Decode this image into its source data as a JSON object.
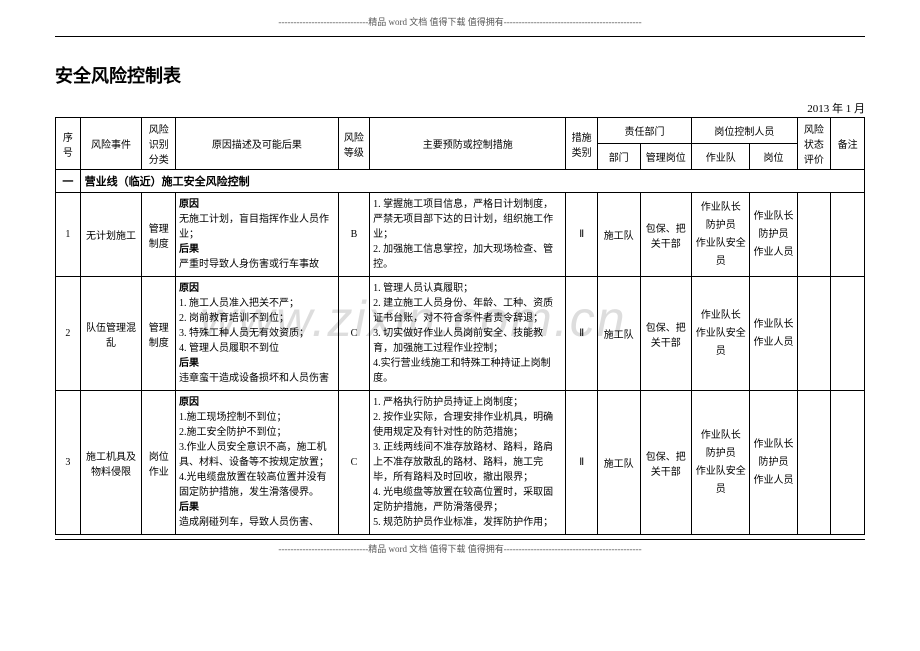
{
  "header": "------------------------------精品 word 文档 值得下载 值得拥有----------------------------------------------",
  "footer": "------------------------------精品 word 文档 值得下载 值得拥有----------------------------------------------",
  "title": "安全风险控制表",
  "date": "2013 年 1 月",
  "watermark": "www.zixin.com.cn",
  "columns": {
    "seq": "序号",
    "event": "风险事件",
    "classify": "风险识别分类",
    "cause": "原因描述及可能后果",
    "level": "风险等级",
    "measures": "主要预防或控制措施",
    "mtype": "措施类别",
    "dept_group": "责任部门",
    "dept": "部门",
    "mgmt": "管理岗位",
    "post_group": "岗位控制人员",
    "team": "作业队",
    "post": "岗位",
    "status": "风险状态评价",
    "remark": "备注"
  },
  "section": {
    "no": "一",
    "title": "营业线（临近）施工安全风险控制"
  },
  "rows": [
    {
      "seq": "1",
      "event": "无计划施工",
      "classify": "管理制度",
      "cause_label": "原因",
      "cause_text": "无施工计划，盲目指挥作业人员作业；",
      "result_label": "后果",
      "result_text": "严重时导致人身伤害或行车事故",
      "level": "B",
      "measures": "1. 掌握施工项目信息，严格日计划制度，严禁无项目部下达的日计划，组织施工作业；\n2. 加强施工信息掌控，加大现场检查、管控。",
      "mtype": "Ⅱ",
      "dept": "施工队",
      "mgmt": "包保、把关干部",
      "team": "作业队长\n防护员\n作业队安全员",
      "post": "作业队长\n防护员\n作业人员"
    },
    {
      "seq": "2",
      "event": "队伍管理混乱",
      "classify": "管理制度",
      "cause_label": "原因",
      "cause_text": "1. 施工人员准入把关不严；\n2. 岗前教育培训不到位；\n3. 特殊工种人员无有效资质；\n4. 管理人员履职不到位",
      "result_label": "后果",
      "result_text": "违章蛮干造成设备损坏和人员伤害",
      "level": "C",
      "measures": "1. 管理人员认真履职；\n2. 建立施工人员身份、年龄、工种、资质证书台账，对不符合条件者责令辞退；\n3. 切实做好作业人员岗前安全、技能教育，加强施工过程作业控制；\n4.实行营业线施工和特殊工种持证上岗制度。",
      "mtype": "Ⅱ",
      "dept": "施工队",
      "mgmt": "包保、把关干部",
      "team": "作业队长\n作业队安全员",
      "post": "作业队长\n作业人员"
    },
    {
      "seq": "3",
      "event": "施工机具及物料侵限",
      "classify": "岗位作业",
      "cause_label": "原因",
      "cause_text": "1.施工现场控制不到位；\n2.施工安全防护不到位；\n3.作业人员安全意识不高，施工机具、材料、设备等不按规定放置；\n4.光电缆盘放置在较高位置并没有固定防护措施，发生滑落侵界。",
      "result_label": "后果",
      "result_text": "造成剐碰列车，导致人员伤害、",
      "level": "C",
      "measures": "1. 严格执行防护员持证上岗制度；\n2. 按作业实际，合理安排作业机具，明确使用规定及有针对性的防范措施；\n3. 正线两线间不准存放路材、路料，路肩上不准存放散乱的路材、路料，施工完毕，所有路料及时回收，撤出限界；\n4. 光电缆盘等放置在较高位置时，采取固定防护措施，严防滑落侵界；\n5. 规范防护员作业标准，发挥防护作用；",
      "mtype": "Ⅱ",
      "dept": "施工队",
      "mgmt": "包保、把关干部",
      "team": "作业队长\n防护员\n作业队安全员",
      "post": "作业队长\n防护员\n作业人员"
    }
  ]
}
